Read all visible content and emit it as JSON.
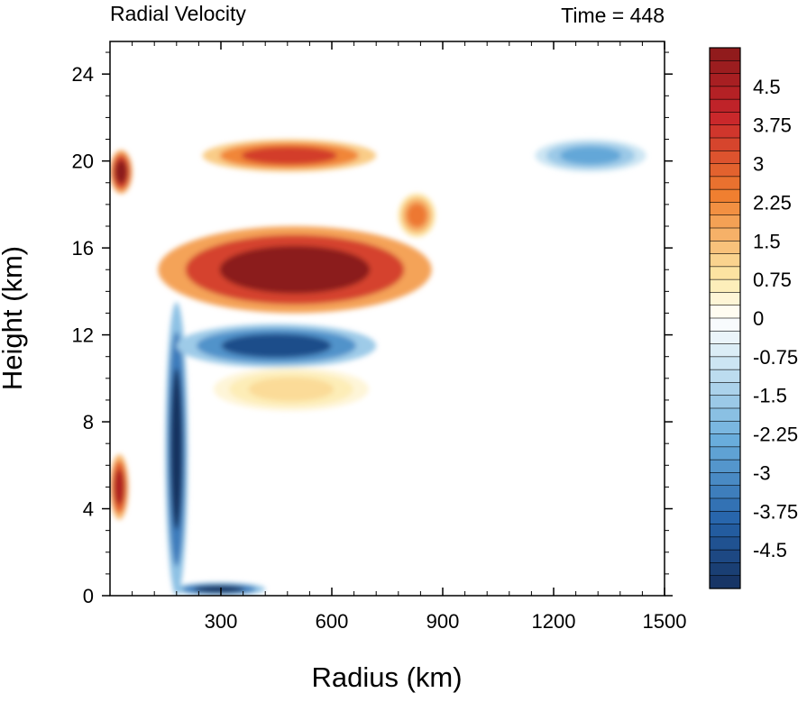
{
  "chart_data": {
    "type": "heatmap",
    "title_left": "Radial Velocity",
    "title_right": "Time = 448",
    "xlabel": "Radius (km)",
    "ylabel": "Height (km)",
    "xlim": [
      0,
      1500
    ],
    "ylim": [
      0,
      25.5
    ],
    "x_ticks": [
      300,
      600,
      900,
      1200,
      1500
    ],
    "x_tick_labels": [
      "300",
      "600",
      "900",
      "1200",
      "1500"
    ],
    "y_ticks": [
      0,
      4,
      8,
      12,
      16,
      20,
      24
    ],
    "y_tick_labels": [
      "0",
      "4",
      "8",
      "12",
      "16",
      "20",
      "24"
    ],
    "colorbar": {
      "min": -5.25,
      "max": 5.25,
      "step": 0.25,
      "label_values": [
        4.5,
        3.75,
        3,
        2.25,
        1.5,
        0.75,
        0,
        -0.75,
        -1.5,
        -2.25,
        -3,
        -3.75,
        -4.5
      ],
      "labels": [
        "4.5",
        "3.75",
        "3",
        "2.25",
        "1.5",
        "0.75",
        "0",
        "-0.75",
        "-1.5",
        "-2.25",
        "-3",
        "-3.75",
        "-4.5"
      ],
      "colors": {
        "max_pos": "#8b1a1a",
        "strong_pos": "#c8242b",
        "mid_pos": "#f08030",
        "light_pos": "#fde9a8",
        "zero": "#ffffff",
        "light_neg": "#d2e8f4",
        "mid_neg": "#6aaedc",
        "strong_neg": "#2563aa",
        "max_neg": "#15305f"
      }
    },
    "features": [
      {
        "name": "upper outflow jet",
        "x": [
          130,
          870
        ],
        "z": [
          13.0,
          17.0
        ],
        "peak_value": 5.25
      },
      {
        "name": "eyewall inflow column",
        "x": [
          150,
          210
        ],
        "z": [
          0,
          13.5
        ],
        "peak_value": -5.25
      },
      {
        "name": "inflow below outflow",
        "x": [
          180,
          720
        ],
        "z": [
          10.5,
          12.5
        ],
        "peak_value": -4.5
      },
      {
        "name": "near-surface inflow",
        "x": [
          170,
          420
        ],
        "z": [
          0,
          0.6
        ],
        "peak_value": -5.25
      },
      {
        "name": "lower stratosphere outflow",
        "x": [
          250,
          720
        ],
        "z": [
          19.5,
          21.0
        ],
        "peak_value": 3.5
      },
      {
        "name": "inner core outflow",
        "x": [
          0,
          60
        ],
        "z": [
          18.5,
          20.5
        ],
        "peak_value": 5.25
      },
      {
        "name": "low-level inner outflow",
        "x": [
          0,
          50
        ],
        "z": [
          3.5,
          6.5
        ],
        "peak_value": 4.5
      },
      {
        "name": "upper inflow far field",
        "x": [
          1150,
          1450
        ],
        "z": [
          19.5,
          21.0
        ],
        "peak_value": -2.5
      },
      {
        "name": "outer outflow patch",
        "x": [
          780,
          880
        ],
        "z": [
          16.5,
          18.5
        ],
        "peak_value": 2.5
      },
      {
        "name": "weak outflow band",
        "x": [
          280,
          700
        ],
        "z": [
          8.5,
          10.5
        ],
        "peak_value": 1.0
      }
    ]
  }
}
